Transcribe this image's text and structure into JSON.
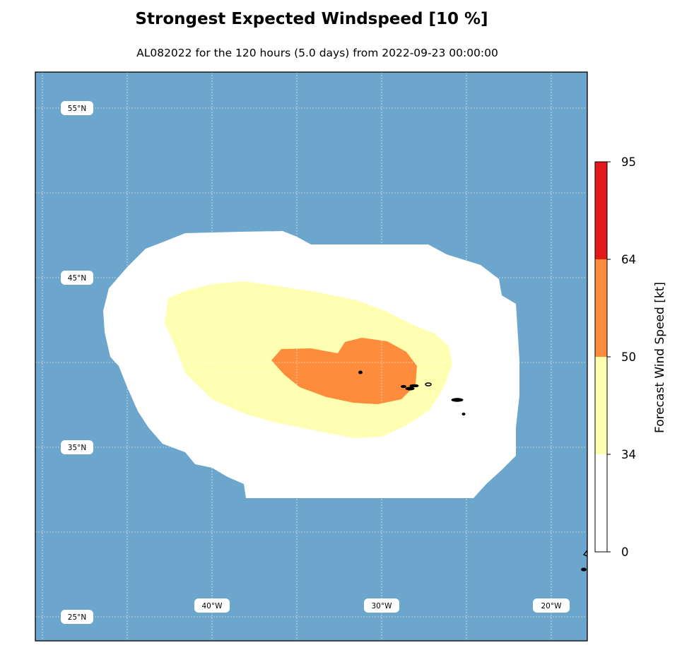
{
  "title": "Strongest Expected Windspeed [10 %]",
  "subtitle": "AL082022 for the 120 hours (5.0 days) from 2022-09-23 00:00:00",
  "map": {
    "ocean_color": "#6ca6cd",
    "lat_labels": [
      "55°N",
      "45°N",
      "35°N",
      "25°N"
    ],
    "lon_labels": [
      "40°W",
      "30°W",
      "20°W"
    ]
  },
  "legend": {
    "title": "Forecast Wind Speed [kt]",
    "ticks": [
      "0",
      "34",
      "50",
      "64",
      "95"
    ],
    "bands": [
      {
        "from": 0,
        "to": 34,
        "color": "#ffffff"
      },
      {
        "from": 34,
        "to": 50,
        "color": "#ffffb2"
      },
      {
        "from": 50,
        "to": 64,
        "color": "#fd8d3c"
      },
      {
        "from": 64,
        "to": 95,
        "color": "#e31a1c"
      }
    ]
  }
}
